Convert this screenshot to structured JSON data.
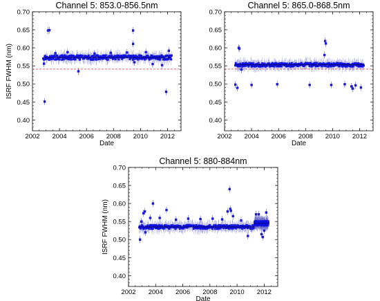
{
  "chart_data": [
    {
      "type": "scatter",
      "title": "Channel 5: 853.0-856.5nm",
      "xlabel": "Date",
      "ylabel": "ISRF FWHM (nm)",
      "xlim": [
        2002,
        2013
      ],
      "ylim": [
        0.37,
        0.7
      ],
      "xticks": [
        2002,
        2004,
        2006,
        2008,
        2010,
        2012
      ],
      "yticks": [
        "0.40",
        "0.45",
        "0.50",
        "0.55",
        "0.60",
        "0.65",
        "0.70"
      ],
      "threshold": 0.541,
      "band": {
        "x": [
          2002.8,
          2012.3
        ],
        "center": 0.573,
        "halfwidth": 0.006
      },
      "points": [
        {
          "x": 2002.9,
          "y": 0.451
        },
        {
          "x": 2002.85,
          "y": 0.556
        },
        {
          "x": 2003.15,
          "y": 0.648
        },
        {
          "x": 2003.25,
          "y": 0.649
        },
        {
          "x": 2003.7,
          "y": 0.585
        },
        {
          "x": 2004.6,
          "y": 0.588
        },
        {
          "x": 2005.4,
          "y": 0.535
        },
        {
          "x": 2006.6,
          "y": 0.584
        },
        {
          "x": 2007.8,
          "y": 0.586
        },
        {
          "x": 2009.0,
          "y": 0.587
        },
        {
          "x": 2009.45,
          "y": 0.648
        },
        {
          "x": 2009.45,
          "y": 0.611
        },
        {
          "x": 2009.55,
          "y": 0.56
        },
        {
          "x": 2010.4,
          "y": 0.588
        },
        {
          "x": 2010.9,
          "y": 0.555
        },
        {
          "x": 2011.6,
          "y": 0.552
        },
        {
          "x": 2011.9,
          "y": 0.478
        },
        {
          "x": 2012.1,
          "y": 0.592
        }
      ]
    },
    {
      "type": "scatter",
      "title": "Channel 5: 865.0-868.5nm",
      "xlabel": "Date",
      "ylabel": "",
      "xlim": [
        2002,
        2013
      ],
      "ylim": [
        0.37,
        0.7
      ],
      "xticks": [
        2002,
        2004,
        2006,
        2008,
        2010,
        2012
      ],
      "yticks": [
        "0.40",
        "0.45",
        "0.50",
        "0.55",
        "0.60",
        "0.65",
        "0.70"
      ],
      "threshold": 0.541,
      "band": {
        "x": [
          2002.8,
          2012.3
        ],
        "center": 0.553,
        "halfwidth": 0.005
      },
      "points": [
        {
          "x": 2002.8,
          "y": 0.498
        },
        {
          "x": 2002.95,
          "y": 0.489
        },
        {
          "x": 2003.05,
          "y": 0.6
        },
        {
          "x": 2003.1,
          "y": 0.598
        },
        {
          "x": 2003.25,
          "y": 0.54
        },
        {
          "x": 2004.0,
          "y": 0.497
        },
        {
          "x": 2005.9,
          "y": 0.499
        },
        {
          "x": 2008.3,
          "y": 0.497
        },
        {
          "x": 2009.45,
          "y": 0.619
        },
        {
          "x": 2009.5,
          "y": 0.612
        },
        {
          "x": 2009.4,
          "y": 0.58
        },
        {
          "x": 2009.9,
          "y": 0.497
        },
        {
          "x": 2010.9,
          "y": 0.499
        },
        {
          "x": 2011.4,
          "y": 0.493
        },
        {
          "x": 2011.5,
          "y": 0.487
        },
        {
          "x": 2011.7,
          "y": 0.496
        },
        {
          "x": 2012.1,
          "y": 0.49
        }
      ]
    },
    {
      "type": "scatter",
      "title": "Channel 5: 880-884nm",
      "xlabel": "Date",
      "ylabel": "ISRF FWHM (nm)",
      "xlim": [
        2002,
        2013
      ],
      "ylim": [
        0.37,
        0.7
      ],
      "xticks": [
        2002,
        2004,
        2006,
        2008,
        2010,
        2012
      ],
      "yticks": [
        "0.40",
        "0.45",
        "0.50",
        "0.55",
        "0.60",
        "0.65",
        "0.70"
      ],
      "threshold": null,
      "band": {
        "x": [
          2002.8,
          2011.3
        ],
        "center": 0.535,
        "halfwidth": 0.005
      },
      "band2": {
        "x": [
          2011.3,
          2012.3
        ],
        "center": 0.545,
        "halfwidth": 0.006
      },
      "points": [
        {
          "x": 2002.85,
          "y": 0.5
        },
        {
          "x": 2002.95,
          "y": 0.55
        },
        {
          "x": 2003.1,
          "y": 0.573
        },
        {
          "x": 2003.2,
          "y": 0.578
        },
        {
          "x": 2003.25,
          "y": 0.52
        },
        {
          "x": 2003.6,
          "y": 0.56
        },
        {
          "x": 2003.8,
          "y": 0.6
        },
        {
          "x": 2004.3,
          "y": 0.56
        },
        {
          "x": 2004.8,
          "y": 0.582
        },
        {
          "x": 2005.5,
          "y": 0.555
        },
        {
          "x": 2006.4,
          "y": 0.558
        },
        {
          "x": 2007.3,
          "y": 0.557
        },
        {
          "x": 2008.2,
          "y": 0.558
        },
        {
          "x": 2008.9,
          "y": 0.556
        },
        {
          "x": 2009.3,
          "y": 0.578
        },
        {
          "x": 2009.45,
          "y": 0.64
        },
        {
          "x": 2009.5,
          "y": 0.585
        },
        {
          "x": 2009.55,
          "y": 0.58
        },
        {
          "x": 2009.7,
          "y": 0.565
        },
        {
          "x": 2010.3,
          "y": 0.553
        },
        {
          "x": 2010.8,
          "y": 0.51
        },
        {
          "x": 2011.1,
          "y": 0.53
        },
        {
          "x": 2011.4,
          "y": 0.57
        },
        {
          "x": 2011.6,
          "y": 0.57
        },
        {
          "x": 2011.8,
          "y": 0.515
        },
        {
          "x": 2011.9,
          "y": 0.507
        },
        {
          "x": 2012.0,
          "y": 0.525
        },
        {
          "x": 2012.15,
          "y": 0.575
        }
      ]
    }
  ]
}
